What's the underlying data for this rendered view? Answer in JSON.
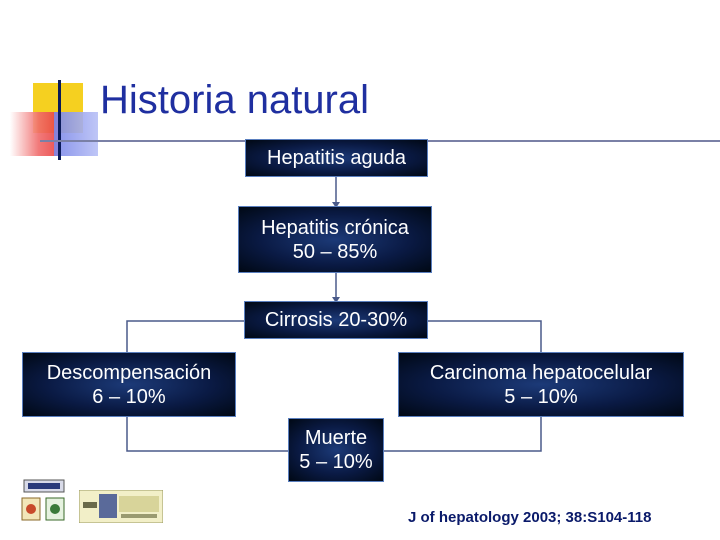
{
  "slide": {
    "title": "Historia natural",
    "citation": "J of hepatology 2003; 38:S104-118"
  },
  "nodes": {
    "aguda": {
      "line1": "Hepatitis aguda"
    },
    "cronica": {
      "line1": "Hepatitis crónica",
      "line2": "50 – 85%"
    },
    "cirrosis": {
      "line1": "Cirrosis 20-30%"
    },
    "descomp": {
      "line1": "Descompensación",
      "line2": "6 – 10%"
    },
    "carcinoma": {
      "line1": "Carcinoma hepatocelular",
      "line2": "5 – 10%"
    },
    "muerte": {
      "line1": "Muerte",
      "line2": "5 – 10%"
    }
  },
  "colors": {
    "title": "#1f2fa0",
    "box_border": "#5a7fbf",
    "connector": "#4a5a8a",
    "citation": "#0a1a6a"
  },
  "logos": {
    "left_logo_icon": "institution-seal-icon",
    "right_logo_icon": "que-hay-de-nuevo-logo-icon"
  }
}
